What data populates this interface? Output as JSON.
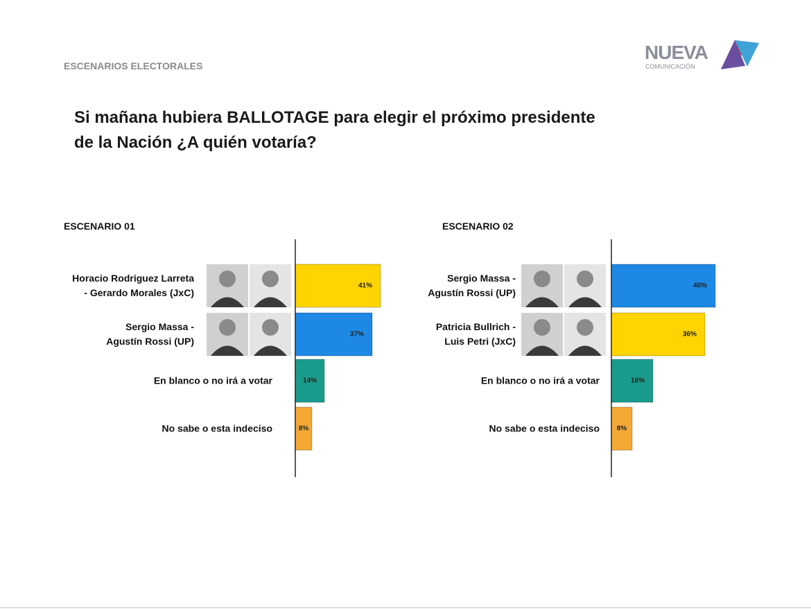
{
  "header": {
    "section": "ESCENARIOS ELECTORALES",
    "logo_main": "NUEVA",
    "logo_sub": "COMUNICACIÓN"
  },
  "question": "Si mañana hubiera BALLOTAGE para elegir el próximo presidente\nde la Nación ¿A quién votaría?",
  "chart_data": [
    {
      "type": "bar",
      "orientation": "horizontal",
      "title": "ESCENARIO 01",
      "categories": [
        "Horacio Rodriguez Larreta\n- Gerardo Morales (JxC)",
        "Sergio Massa -\nAgustín Rossi (UP)",
        "En blanco o no irá a votar",
        "No sabe o esta indeciso"
      ],
      "values": [
        41,
        37,
        14,
        8
      ],
      "value_labels": [
        "41%",
        "37%",
        "14%",
        "8%"
      ],
      "colors": [
        "#ffd400",
        "#1e88e5",
        "#1a9c8c",
        "#f4a935"
      ],
      "xlim": [
        0,
        50
      ]
    },
    {
      "type": "bar",
      "orientation": "horizontal",
      "title": "ESCENARIO 02",
      "categories": [
        "Sergio Massa -\nAgustín Rossi (UP)",
        "Patricia Bullrich -\nLuis Petri (JxC)",
        "En blanco o no irá a votar",
        "No sabe o esta indeciso"
      ],
      "values": [
        40,
        36,
        16,
        8
      ],
      "value_labels": [
        "40%",
        "36%",
        "16%",
        "8%"
      ],
      "colors": [
        "#1e88e5",
        "#ffd400",
        "#1a9c8c",
        "#f4a935"
      ],
      "xlim": [
        0,
        40
      ]
    }
  ]
}
